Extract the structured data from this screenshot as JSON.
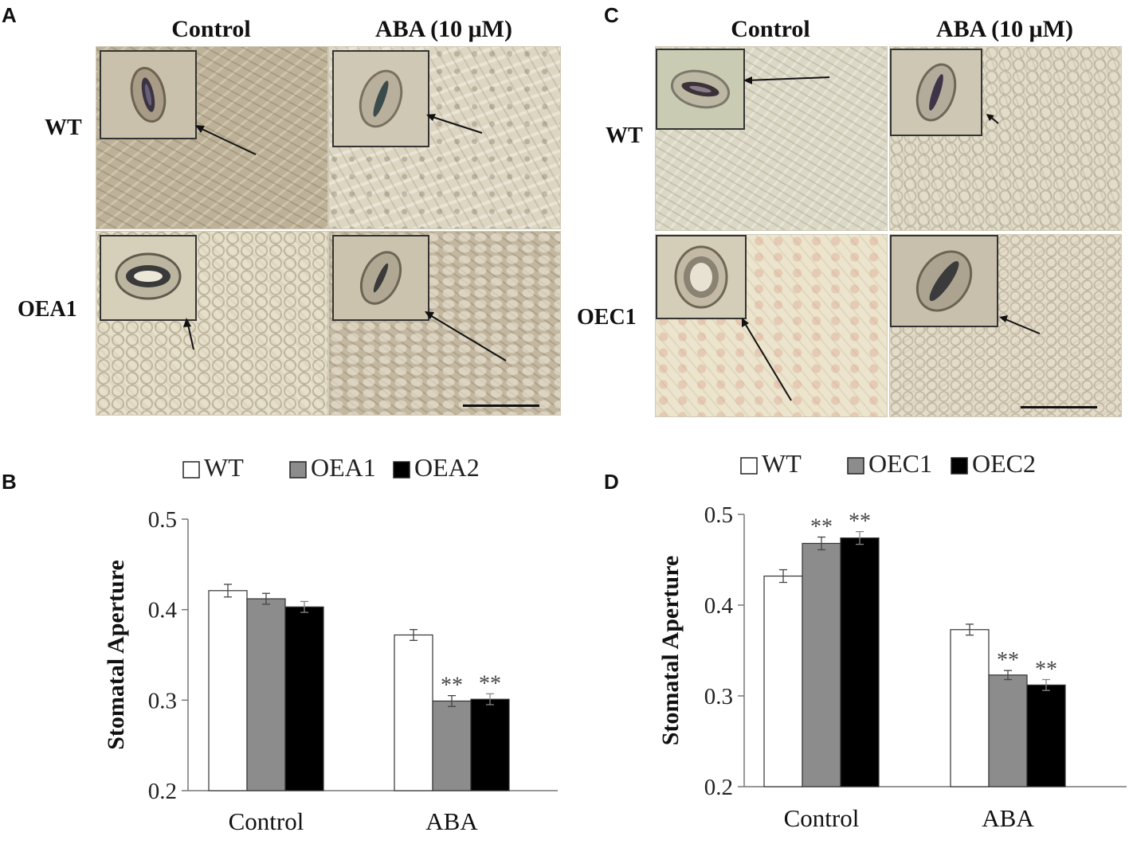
{
  "panels": {
    "A": {
      "letter": "A",
      "columns": [
        "Control",
        "ABA (10 μM)"
      ],
      "rows": [
        "WT",
        "OEA1"
      ]
    },
    "C": {
      "letter": "C",
      "columns": [
        "Control",
        "ABA (10 μM)"
      ],
      "rows": [
        "WT",
        "OEC1"
      ]
    }
  },
  "chart_data": [
    {
      "panel": "B",
      "type": "bar",
      "categories": [
        "Control",
        "ABA"
      ],
      "series": [
        {
          "name": "WT",
          "values": [
            0.421,
            0.372
          ],
          "errors": [
            0.007,
            0.006
          ],
          "sig": [
            "",
            ""
          ],
          "color": "#ffffff"
        },
        {
          "name": "OEA1",
          "values": [
            0.412,
            0.299
          ],
          "errors": [
            0.006,
            0.006
          ],
          "sig": [
            "",
            "**"
          ],
          "color": "#8c8c8c"
        },
        {
          "name": "OEA2",
          "values": [
            0.403,
            0.301
          ],
          "errors": [
            0.006,
            0.006
          ],
          "sig": [
            "",
            "**"
          ],
          "color": "#000000"
        }
      ],
      "ylabel": "Stomatal Aperture",
      "ylim": [
        0.2,
        0.5
      ],
      "yticks": [
        "0.2",
        "0.3",
        "0.4",
        "0.5"
      ],
      "legend": "top"
    },
    {
      "panel": "D",
      "type": "bar",
      "categories": [
        "Control",
        "ABA"
      ],
      "series": [
        {
          "name": "WT",
          "values": [
            0.432,
            0.373
          ],
          "errors": [
            0.007,
            0.006
          ],
          "sig": [
            "",
            ""
          ],
          "color": "#ffffff"
        },
        {
          "name": "OEC1",
          "values": [
            0.468,
            0.323
          ],
          "errors": [
            0.007,
            0.005
          ],
          "sig": [
            "**",
            "**"
          ],
          "color": "#8c8c8c"
        },
        {
          "name": "OEC2",
          "values": [
            0.474,
            0.312
          ],
          "errors": [
            0.007,
            0.006
          ],
          "sig": [
            "**",
            "**"
          ],
          "color": "#000000"
        }
      ],
      "ylabel": "Stomatal Aperture",
      "ylim": [
        0.2,
        0.5
      ],
      "yticks": [
        "0.2",
        "0.3",
        "0.4",
        "0.5"
      ],
      "legend": "top"
    }
  ]
}
